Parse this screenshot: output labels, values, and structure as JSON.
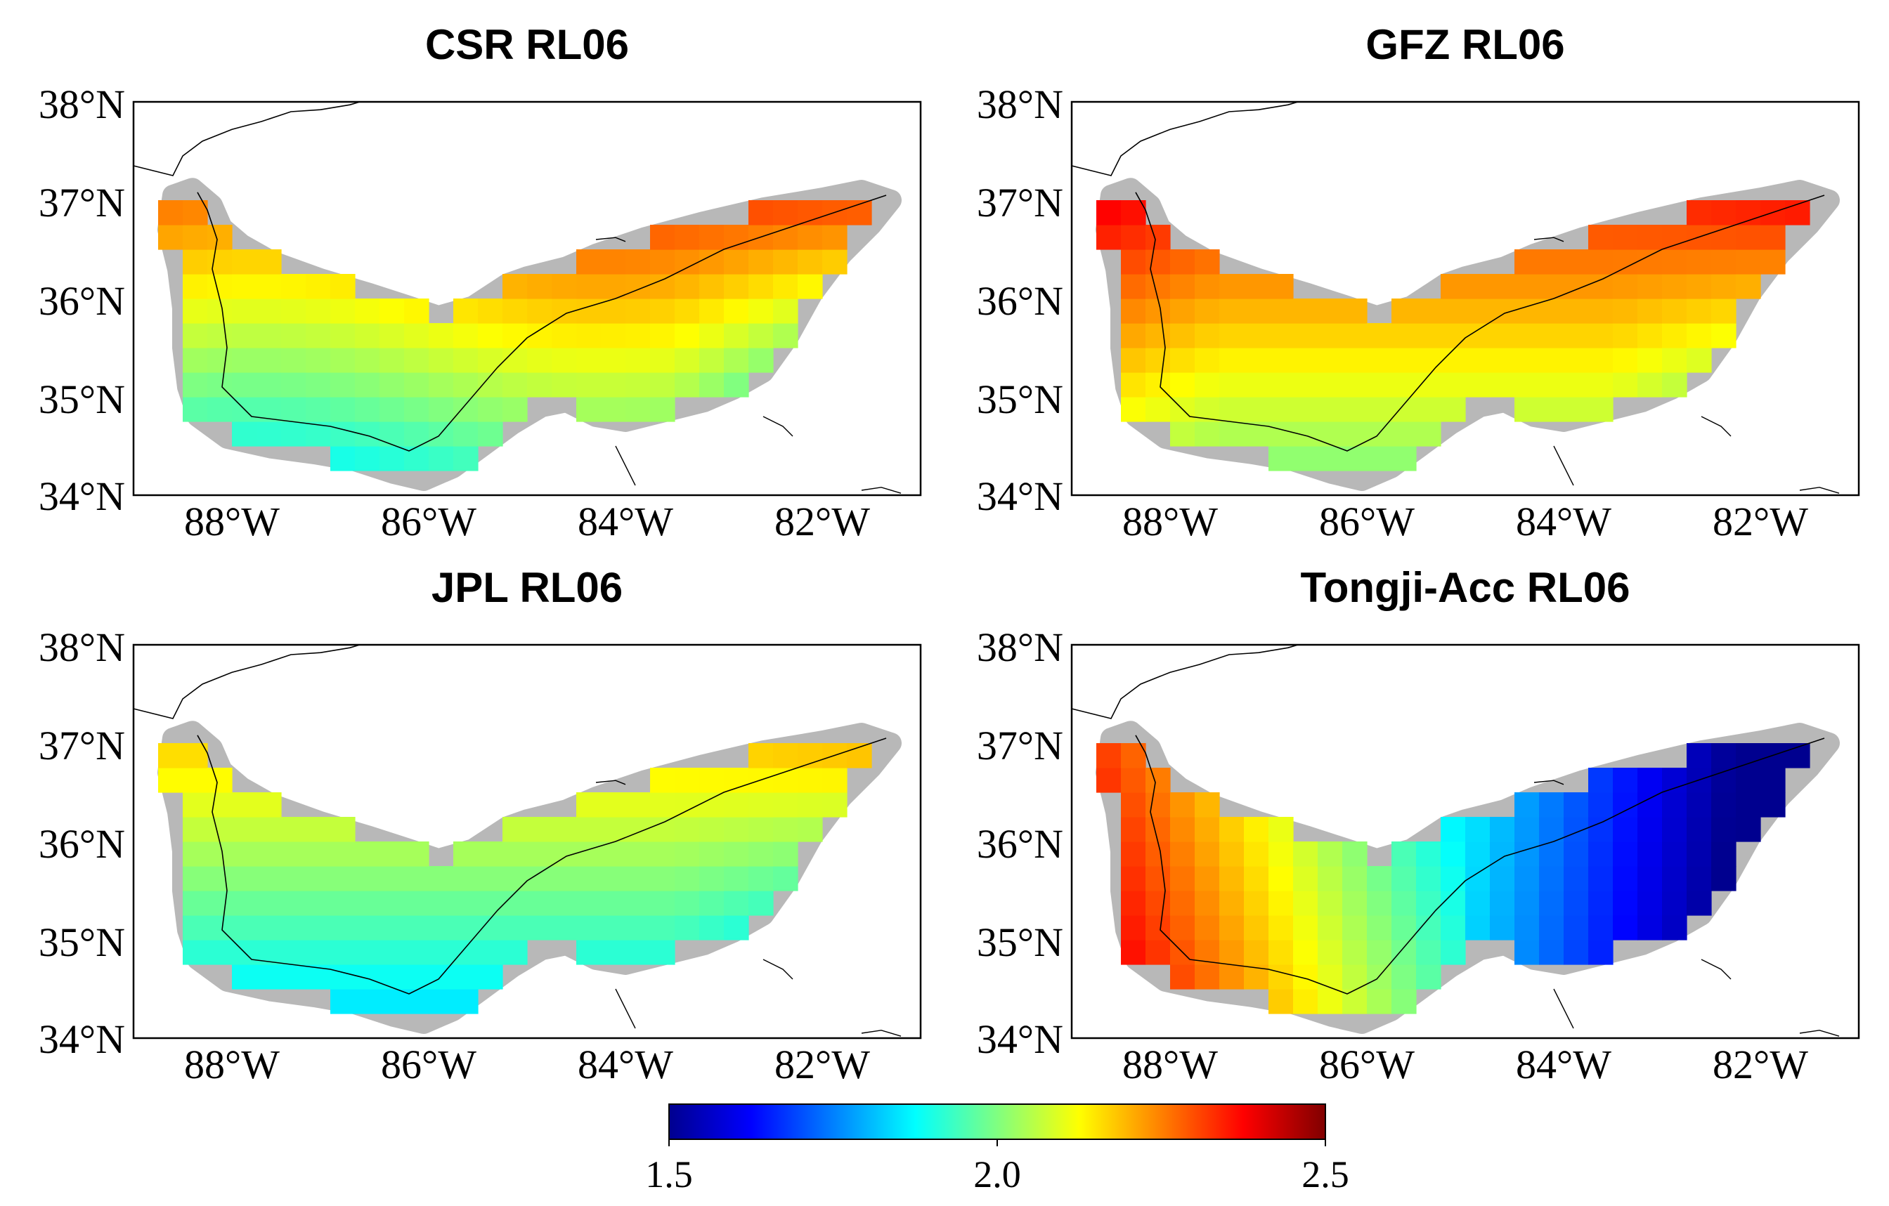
{
  "figure": {
    "panels": [
      {
        "title": "CSR RL06",
        "pattern": "csr"
      },
      {
        "title": "GFZ RL06",
        "pattern": "gfz"
      },
      {
        "title": "JPL RL06",
        "pattern": "jpl"
      },
      {
        "title": "Tongji-Acc RL06",
        "pattern": "tongji"
      }
    ],
    "lat_ticks": [
      "38°N",
      "37°N",
      "36°N",
      "35°N",
      "34°N"
    ],
    "lon_ticks": [
      "88°W",
      "86°W",
      "84°W",
      "82°W"
    ],
    "lat_range": [
      34,
      38
    ],
    "lon_range": [
      -89.0,
      -81.0
    ],
    "colorbar": {
      "min": 1.5,
      "max": 2.5,
      "tick_labels": [
        "1.5",
        "2.0",
        "2.5"
      ],
      "colormap": "jet",
      "colors": [
        "#00008f",
        "#0000ff",
        "#0080ff",
        "#00ffff",
        "#80ff80",
        "#ffff00",
        "#ff8000",
        "#ff0000",
        "#800000"
      ]
    },
    "mask_color": "#b8b8b8"
  }
}
